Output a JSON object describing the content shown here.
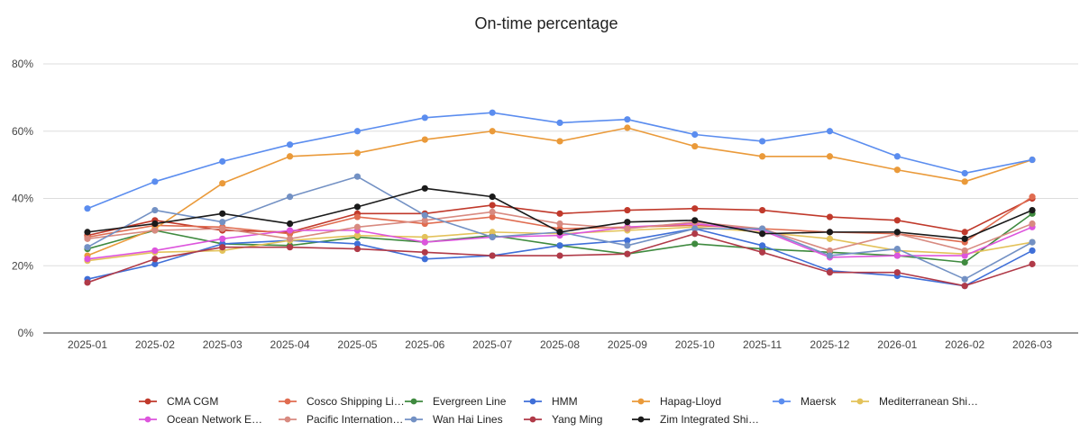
{
  "chart_data": {
    "type": "line",
    "title": "On-time percentage",
    "xlabel": "",
    "ylabel": "",
    "ylim": [
      0,
      80
    ],
    "y_ticks": [
      0,
      20,
      40,
      60,
      80
    ],
    "y_tick_labels": [
      "0%",
      "20%",
      "40%",
      "60%",
      "80%"
    ],
    "categories": [
      "2025-01",
      "2025-02",
      "2025-03",
      "2025-04",
      "2025-05",
      "2025-06",
      "2025-07",
      "2025-08",
      "2025-09",
      "2025-10",
      "2025-11",
      "2025-12",
      "2026-01",
      "2026-02",
      "2026-03"
    ],
    "grid": true,
    "legend_position": "bottom",
    "series": [
      {
        "name": "CMA CGM",
        "label": "CMA CGM",
        "color": "#c0392b",
        "values": [
          29.0,
          33.5,
          30.5,
          30.0,
          35.5,
          35.5,
          38.0,
          35.5,
          36.5,
          37.0,
          36.5,
          34.5,
          33.5,
          30.0,
          40.0
        ]
      },
      {
        "name": "Cosco Shipping Lines",
        "label": "Cosco Shipping Li…",
        "color": "#e06c50",
        "values": [
          28.5,
          32.0,
          31.5,
          29.5,
          34.5,
          32.5,
          34.5,
          31.0,
          31.5,
          32.0,
          31.0,
          30.0,
          29.5,
          27.0,
          40.5
        ]
      },
      {
        "name": "Evergreen Line",
        "label": "Evergreen Line",
        "color": "#3f8a3f",
        "values": [
          25.0,
          30.5,
          26.5,
          26.0,
          28.5,
          27.0,
          29.0,
          26.0,
          23.5,
          26.5,
          25.0,
          24.0,
          23.0,
          21.0,
          35.5
        ]
      },
      {
        "name": "HMM",
        "label": "HMM",
        "color": "#3f6fd8",
        "values": [
          16.0,
          20.5,
          26.5,
          27.5,
          26.5,
          22.0,
          23.0,
          26.0,
          27.5,
          31.0,
          26.0,
          18.5,
          17.0,
          14.0,
          24.5
        ]
      },
      {
        "name": "Hapag-Lloyd",
        "label": "Hapag-Lloyd",
        "color": "#ea9a3a",
        "values": [
          23.0,
          31.0,
          44.5,
          52.5,
          53.5,
          57.5,
          60.0,
          57.0,
          61.0,
          55.5,
          52.5,
          52.5,
          48.5,
          45.0,
          51.5
        ]
      },
      {
        "name": "Maersk",
        "label": "Maersk",
        "color": "#5b8def",
        "values": [
          37.0,
          45.0,
          51.0,
          56.0,
          60.0,
          64.0,
          65.5,
          62.5,
          63.5,
          59.0,
          57.0,
          60.0,
          52.5,
          47.5,
          51.5
        ]
      },
      {
        "name": "Mediterranean Shipping Company",
        "label": "Mediterranean Shi…",
        "color": "#e3c25a",
        "values": [
          21.5,
          24.0,
          24.5,
          27.5,
          29.0,
          28.5,
          30.0,
          29.5,
          30.5,
          31.5,
          30.0,
          28.0,
          24.5,
          23.5,
          27.0
        ]
      },
      {
        "name": "Ocean Network Express",
        "label": "Ocean Network E…",
        "color": "#dd55dd",
        "values": [
          22.0,
          24.5,
          28.0,
          30.5,
          30.5,
          27.0,
          28.5,
          29.0,
          31.5,
          32.5,
          30.5,
          22.5,
          23.0,
          23.0,
          31.5
        ]
      },
      {
        "name": "Pacific International Lines",
        "label": "Pacific Internation…",
        "color": "#d88a80",
        "values": [
          28.0,
          30.5,
          31.0,
          28.0,
          31.5,
          33.5,
          36.0,
          32.5,
          31.0,
          33.0,
          31.0,
          24.5,
          29.5,
          24.5,
          32.5
        ]
      },
      {
        "name": "Wan Hai Lines",
        "label": "Wan Hai Lines",
        "color": "#7391c4",
        "values": [
          25.5,
          36.5,
          33.0,
          40.5,
          46.5,
          35.0,
          28.5,
          30.0,
          26.0,
          31.0,
          31.0,
          23.0,
          25.0,
          16.0,
          27.0
        ]
      },
      {
        "name": "Yang Ming",
        "label": "Yang Ming",
        "color": "#b03a48",
        "values": [
          15.0,
          22.0,
          25.5,
          25.5,
          25.0,
          24.0,
          23.0,
          23.0,
          23.5,
          29.5,
          24.0,
          18.0,
          18.0,
          14.0,
          20.5
        ]
      },
      {
        "name": "Zim Integrated Shipping Services",
        "label": "Zim Integrated Shi…",
        "color": "#1a1a1a",
        "values": [
          30.0,
          32.5,
          35.5,
          32.5,
          37.5,
          43.0,
          40.5,
          30.0,
          33.0,
          33.5,
          29.5,
          30.0,
          30.0,
          28.0,
          36.5
        ]
      }
    ]
  }
}
